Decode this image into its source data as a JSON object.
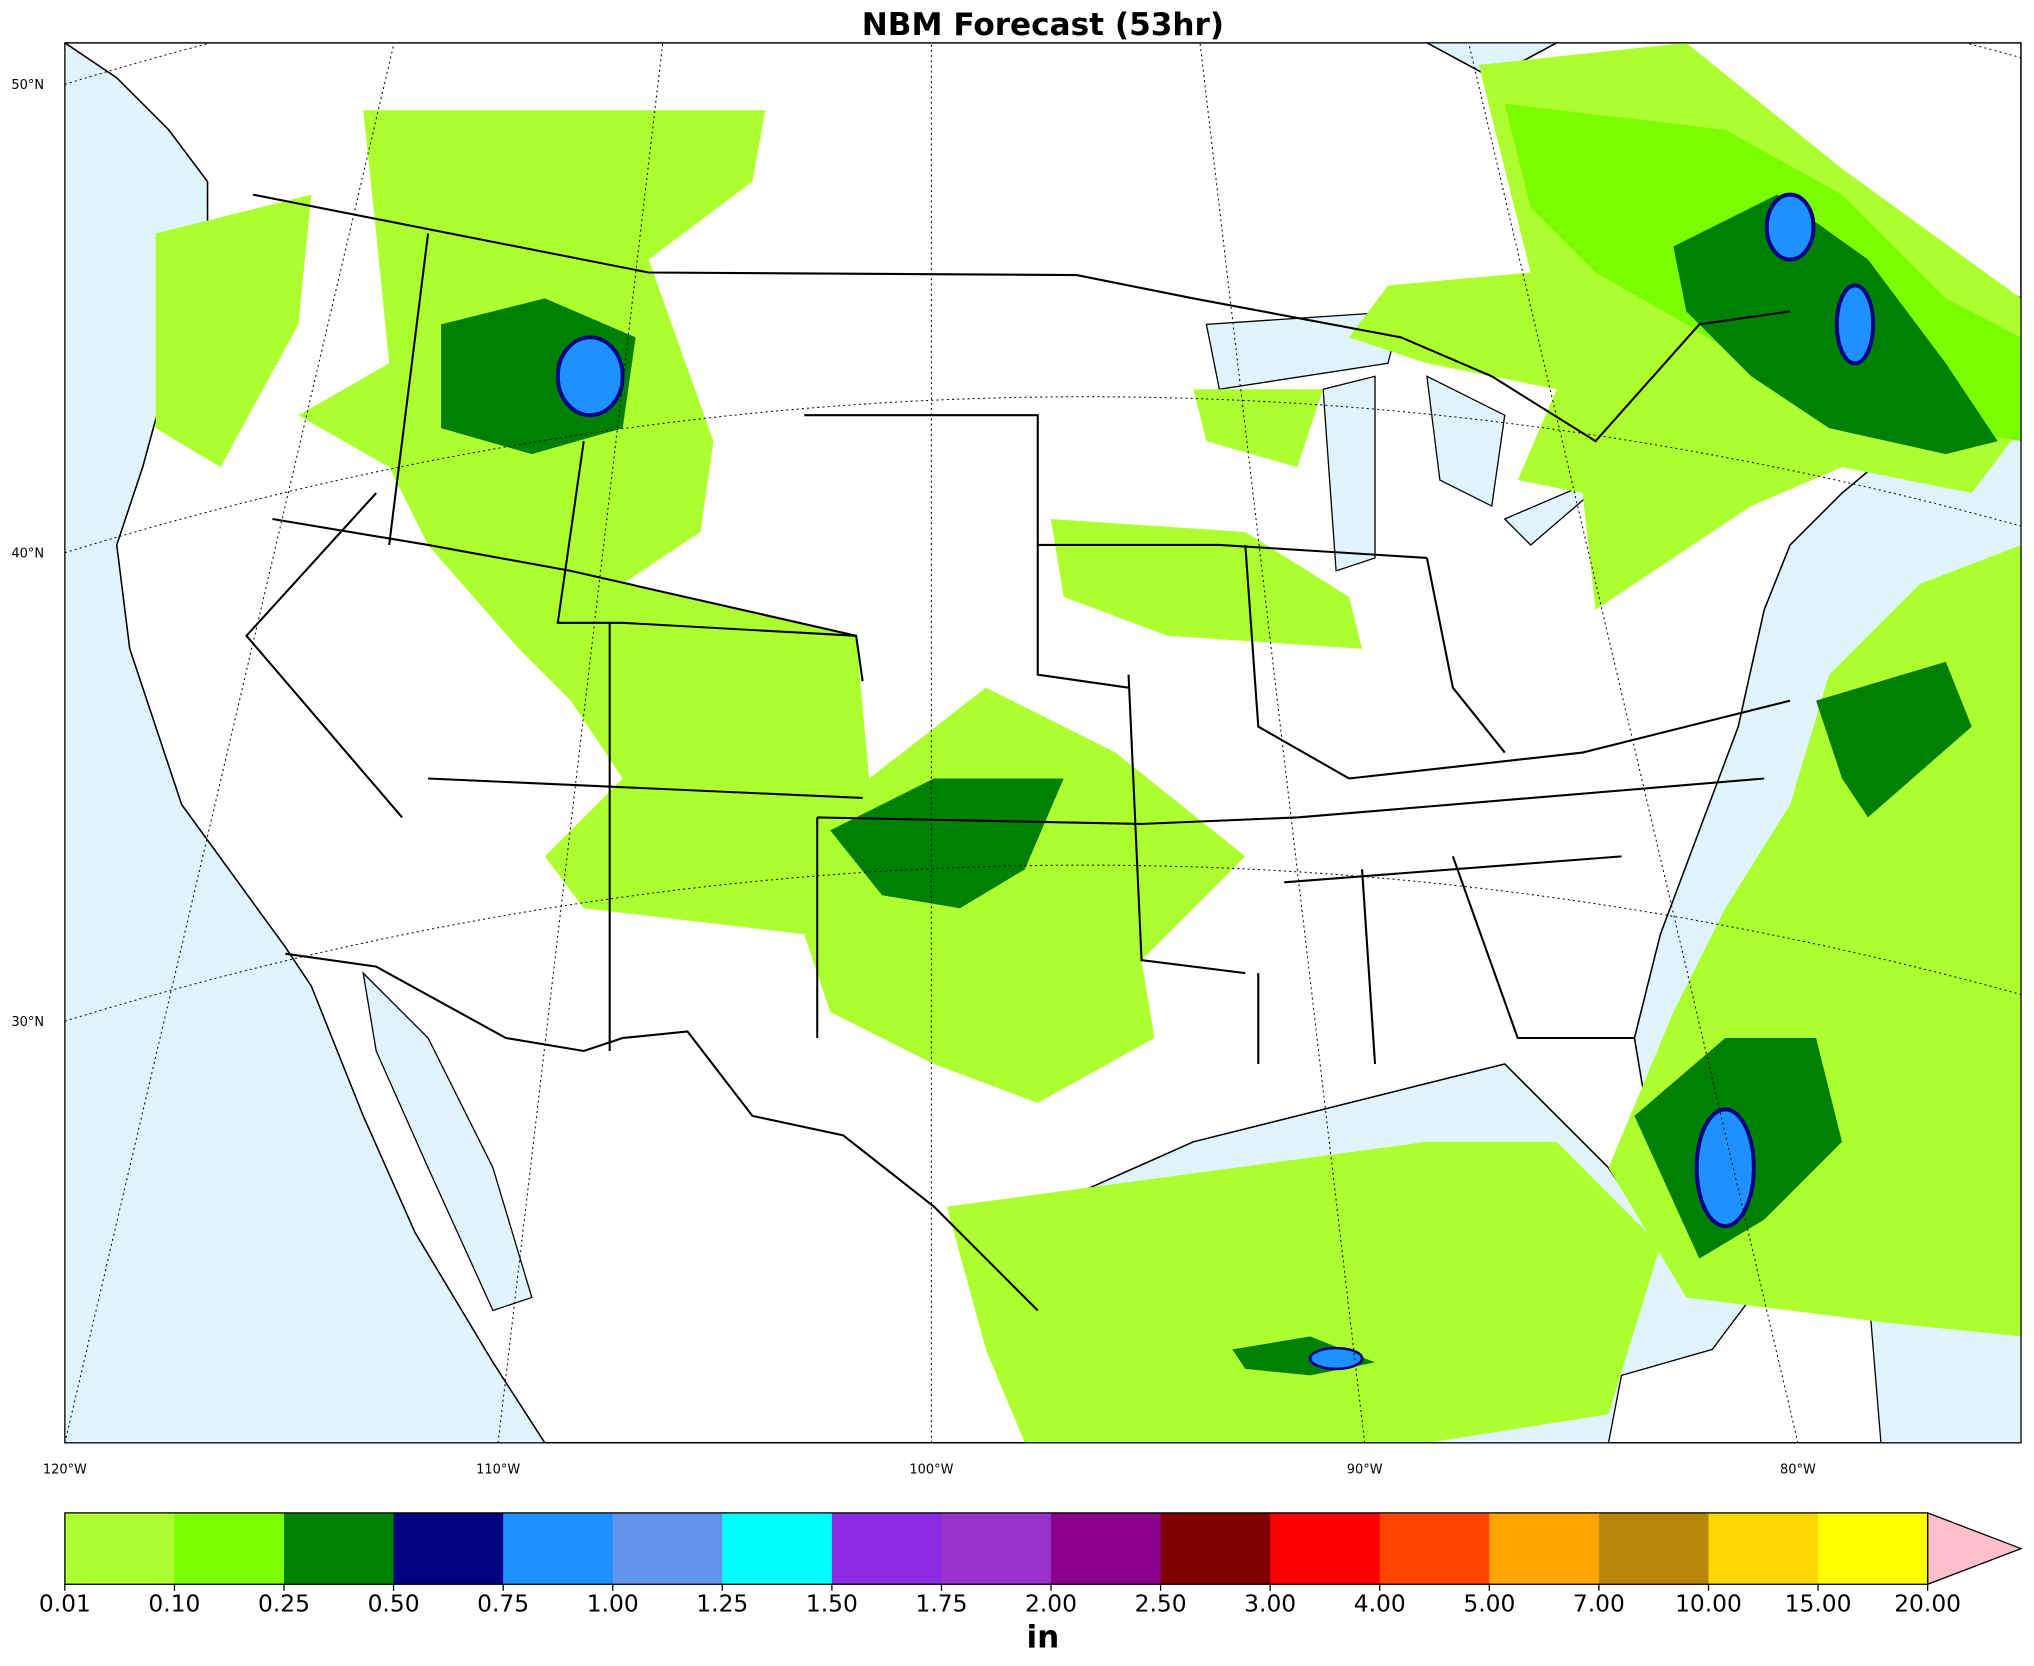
{
  "map": {
    "title": "NBM Forecast (53hr)",
    "latitudes": [
      {
        "value": 50,
        "label": "50°N"
      },
      {
        "value": 40,
        "label": "40°N"
      },
      {
        "value": 30,
        "label": "30°N"
      }
    ],
    "longitudes": [
      {
        "value": -120,
        "label": "120°W"
      },
      {
        "value": -110,
        "label": "110°W"
      },
      {
        "value": -100,
        "label": "100°W"
      },
      {
        "value": -90,
        "label": "90°W"
      },
      {
        "value": -80,
        "label": "80°W"
      }
    ],
    "colorbar": {
      "label": "in",
      "levels": [
        {
          "value": 0.01,
          "label": "0.01"
        },
        {
          "value": 0.1,
          "label": "0.10"
        },
        {
          "value": 0.25,
          "label": "0.25"
        },
        {
          "value": 0.5,
          "label": "0.50"
        },
        {
          "value": 0.75,
          "label": "0.75"
        },
        {
          "value": 1,
          "label": "1.00"
        },
        {
          "value": 1.25,
          "label": "1.25"
        },
        {
          "value": 1.5,
          "label": "1.50"
        },
        {
          "value": 1.75,
          "label": "1.75"
        },
        {
          "value": 2,
          "label": "2.00"
        },
        {
          "value": 2.5,
          "label": "2.50"
        },
        {
          "value": 3,
          "label": "3.00"
        },
        {
          "value": 4,
          "label": "4.00"
        },
        {
          "value": 5,
          "label": "5.00"
        },
        {
          "value": 7,
          "label": "7.00"
        },
        {
          "value": 10,
          "label": "10.00"
        },
        {
          "value": 15,
          "label": "15.00"
        },
        {
          "value": 20,
          "label": "20.00"
        }
      ],
      "colors": [
        "#adff2f",
        "#7cfc00",
        "#008000",
        "#000080",
        "#1e90ff",
        "#6495ed",
        "#00ffff",
        "#8a2be2",
        "#9932cc",
        "#8b008b",
        "#800000",
        "#ff0000",
        "#ff4500",
        "#ffa500",
        "#b8860b",
        "#ffd700",
        "#ffff00"
      ],
      "extend_color": "#ffc0cb"
    }
  }
}
